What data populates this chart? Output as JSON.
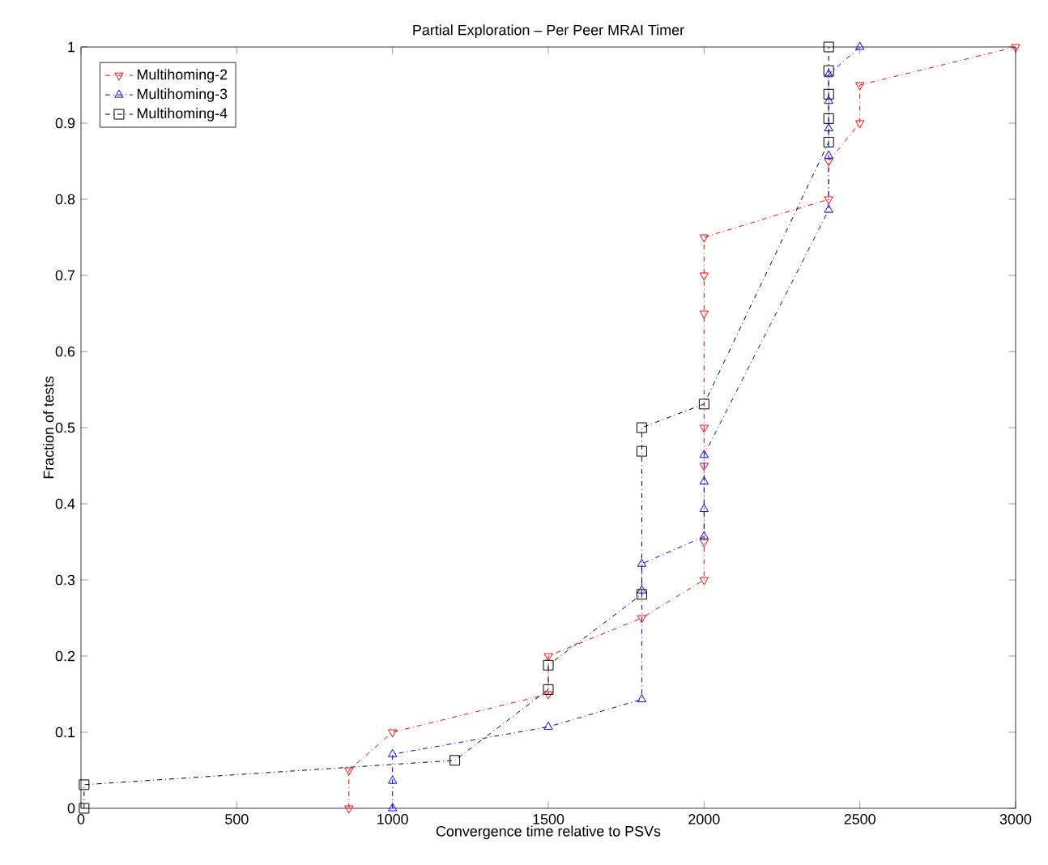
{
  "chart_data": {
    "type": "line",
    "title": "Partial Exploration – Per Peer MRAI Timer",
    "xlabel": "Convergence time relative to PSVs",
    "ylabel": "Fraction of tests",
    "xlim": [
      0,
      3000
    ],
    "ylim": [
      0,
      1
    ],
    "xticks": [
      0,
      500,
      1000,
      1500,
      2000,
      2500,
      3000
    ],
    "yticks": [
      0,
      0.1,
      0.2,
      0.3,
      0.4,
      0.5,
      0.6,
      0.7,
      0.8,
      0.9,
      1
    ],
    "grid": false,
    "legend": "top left",
    "line_style": "dashed",
    "series": [
      {
        "name": "Multihoming-2",
        "color": "#ff0000",
        "marker": "triangle_down",
        "x": [
          860,
          860,
          1000,
          1500,
          1500,
          1800,
          2000,
          2000,
          2000,
          2000,
          2000,
          2000,
          2000,
          2400,
          2400,
          2500,
          2500,
          3000
        ],
        "values": [
          0,
          0.05,
          0.1,
          0.15,
          0.2,
          0.25,
          0.3,
          0.35,
          0.45,
          0.5,
          0.65,
          0.7,
          0.75,
          0.8,
          0.85,
          0.9,
          0.95,
          1
        ]
      },
      {
        "name": "Multihoming-3",
        "color": "#0000ff",
        "marker": "triangle",
        "x": [
          1000,
          1000,
          1000,
          1500,
          1800,
          1800,
          1800,
          2000,
          2000,
          2000,
          2000,
          2400,
          2400,
          2400,
          2400,
          2400,
          2500
        ],
        "values": [
          0,
          0.036,
          0.071,
          0.107,
          0.143,
          0.286,
          0.321,
          0.357,
          0.393,
          0.429,
          0.464,
          0.786,
          0.857,
          0.893,
          0.929,
          0.964,
          1
        ]
      },
      {
        "name": "Multihoming-4",
        "color": "#000000",
        "marker": "square",
        "x": [
          10,
          10,
          1200,
          1500,
          1500,
          1800,
          1800,
          1800,
          2000,
          2400,
          2400,
          2400,
          2400,
          2400
        ],
        "values": [
          0,
          0.031,
          0.063,
          0.156,
          0.188,
          0.281,
          0.469,
          0.5,
          0.531,
          0.875,
          0.906,
          0.938,
          0.969,
          1
        ]
      }
    ]
  }
}
